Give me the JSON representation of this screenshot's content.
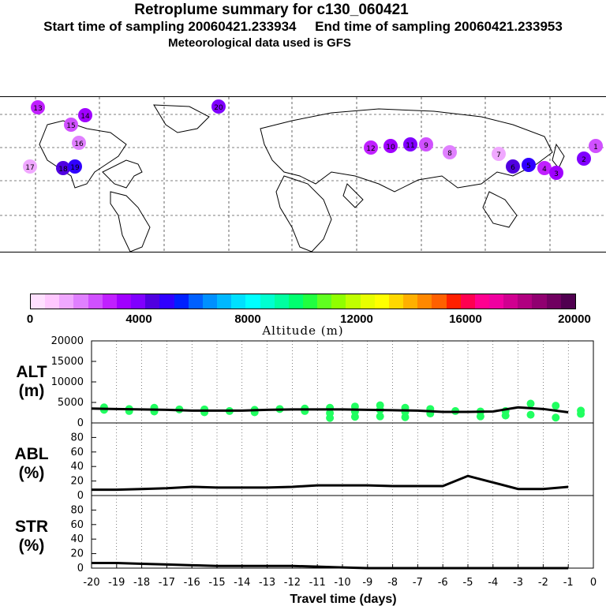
{
  "header": {
    "title": "Retroplume summary for c130_060421",
    "sampling": "Start time of sampling 20060421.233934     End time of sampling 20060421.233953",
    "meteo": "Meteorological data used is GFS"
  },
  "colorbar": {
    "label": "Altitude (m)",
    "ticks": [
      "0",
      "4000",
      "8000",
      "12000",
      "16000",
      "20000"
    ],
    "colors": [
      "#ffe0ff",
      "#ffc8ff",
      "#f0a8ff",
      "#e080ff",
      "#d050ff",
      "#c020ff",
      "#a000ff",
      "#8000ff",
      "#5000e0",
      "#3000ff",
      "#0020ff",
      "#0060ff",
      "#0090ff",
      "#00b8ff",
      "#00e0ff",
      "#00ffff",
      "#00ffd0",
      "#00ffa0",
      "#00ff70",
      "#20ff40",
      "#60ff20",
      "#90ff00",
      "#c0ff00",
      "#e8ff00",
      "#ffff00",
      "#ffd800",
      "#ffb000",
      "#ff8800",
      "#ff6000",
      "#ff2000",
      "#ff0050",
      "#ff0090",
      "#f000a0",
      "#d00090",
      "#b00080",
      "#900070",
      "#700060",
      "#500050"
    ]
  },
  "map": {
    "plume_labels": [
      "13",
      "14",
      "20",
      "15",
      "16",
      "17",
      "18",
      "19",
      "12",
      "10",
      "11",
      "9",
      "8",
      "7",
      "6",
      "5",
      "4",
      "3",
      "2",
      "1"
    ]
  },
  "chart_data": [
    {
      "type": "line",
      "panel": "ALT",
      "ylabel": "ALT\n(m)",
      "ylabel_line1": "ALT",
      "ylabel_line2": "(m)",
      "ylim": [
        0,
        20000
      ],
      "yticks": [
        "20000",
        "15000",
        "10000",
        "5000",
        "0"
      ],
      "x": [
        -20,
        -19,
        -18,
        -17,
        -16,
        -15,
        -14,
        -13,
        -12,
        -11,
        -10,
        -9,
        -8,
        -7,
        -6,
        -5,
        -4,
        -3,
        -2,
        -1
      ],
      "values": [
        3500,
        3400,
        3300,
        3200,
        3000,
        3000,
        3000,
        3200,
        3300,
        3300,
        3300,
        3200,
        3100,
        3000,
        2700,
        2700,
        2800,
        3800,
        3400,
        2600
      ],
      "scatter_x": [
        -20,
        -20,
        -19,
        -19,
        -18,
        -18,
        -17,
        -16,
        -16,
        -15,
        -14,
        -14,
        -13,
        -12,
        -12,
        -11,
        -11,
        -11,
        -10,
        -10,
        -10,
        -9,
        -9,
        -9,
        -8,
        -8,
        -8,
        -7,
        -7,
        -6,
        -5,
        -5,
        -4,
        -4,
        -3,
        -3,
        -2,
        -2,
        -1,
        -1
      ],
      "scatter_y": [
        3200,
        3800,
        3400,
        2900,
        3700,
        2800,
        3300,
        2600,
        3300,
        2900,
        2600,
        3200,
        3400,
        3500,
        2900,
        3700,
        2400,
        1200,
        4000,
        2800,
        1500,
        4300,
        3200,
        1600,
        3700,
        2700,
        1400,
        3400,
        2300,
        2900,
        2800,
        1600,
        2900,
        1800,
        4700,
        2000,
        4200,
        1300,
        3000,
        2200
      ],
      "series_color": "#000000",
      "scatter_color": "#20ff60"
    },
    {
      "type": "line",
      "panel": "ABL",
      "ylabel_line1": "ABL",
      "ylabel_line2": "(%)",
      "ylim": [
        0,
        100
      ],
      "yticks": [
        "80",
        "60",
        "40",
        "20",
        "0"
      ],
      "x": [
        -20,
        -19,
        -18,
        -17,
        -16,
        -15,
        -14,
        -13,
        -12,
        -11,
        -10,
        -9,
        -8,
        -7,
        -6,
        -5,
        -4,
        -3,
        -2,
        -1
      ],
      "values": [
        8,
        8,
        9,
        10,
        12,
        11,
        11,
        11,
        12,
        14,
        14,
        14,
        13,
        13,
        13,
        27,
        18,
        9,
        9,
        12
      ]
    },
    {
      "type": "line",
      "panel": "STR",
      "ylabel_line1": "STR",
      "ylabel_line2": "(%)",
      "ylim": [
        0,
        100
      ],
      "yticks": [
        "80",
        "60",
        "40",
        "20",
        "0"
      ],
      "x": [
        -20,
        -19,
        -18,
        -17,
        -16,
        -15,
        -14,
        -13,
        -12,
        -11,
        -10,
        -9,
        -8,
        -7,
        -6,
        -5,
        -4,
        -3,
        -2,
        -1
      ],
      "values": [
        7,
        7,
        6,
        5,
        4,
        3,
        3,
        3,
        3,
        2,
        1,
        0,
        0,
        0,
        0,
        0,
        0,
        0,
        0,
        0
      ]
    }
  ],
  "xaxis": {
    "label": "Travel time (days)",
    "ticks": [
      "-20",
      "-19",
      "-18",
      "-17",
      "-16",
      "-15",
      "-14",
      "-13",
      "-12",
      "-11",
      "-10",
      "-9",
      "-8",
      "-7",
      "-6",
      "-5",
      "-4",
      "-3",
      "-2",
      "-1",
      "0"
    ]
  }
}
